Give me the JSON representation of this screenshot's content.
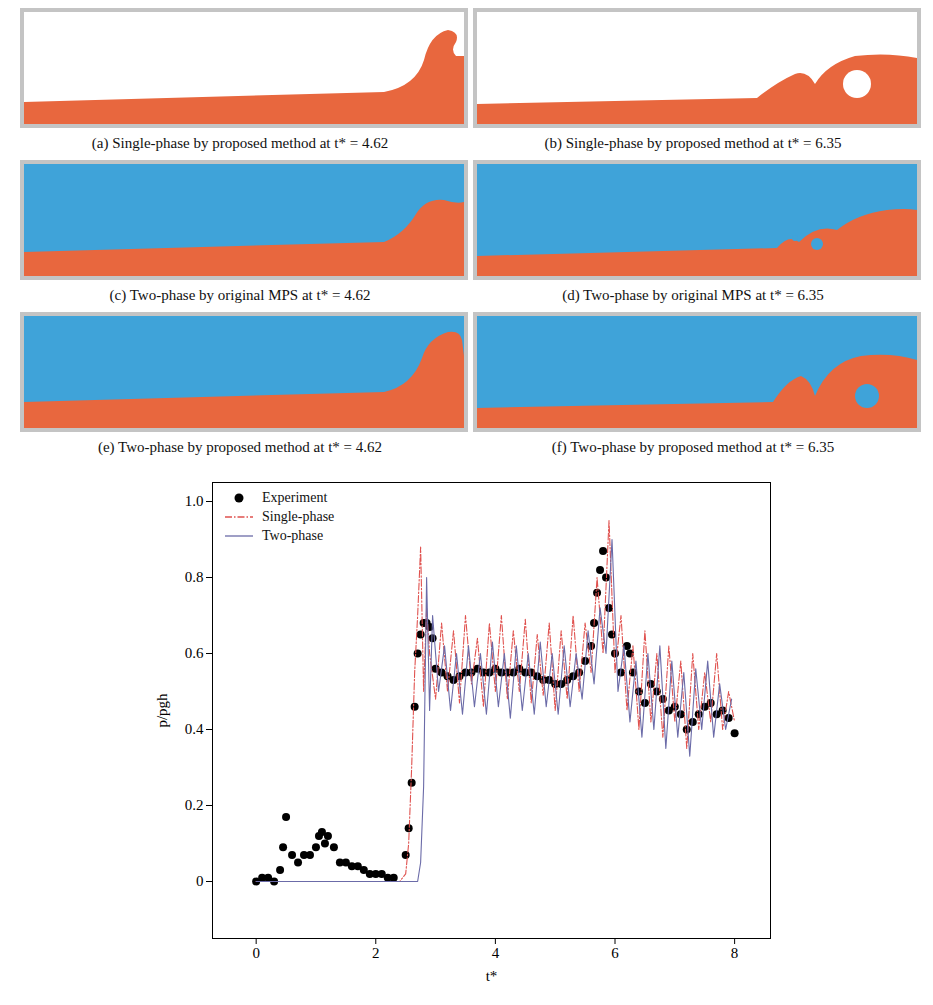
{
  "panels": [
    {
      "caption": "(a) Single-phase by proposed method at t* = 4.62"
    },
    {
      "caption": "(b) Single-phase by proposed method at t* = 6.35"
    },
    {
      "caption": "(c) Two-phase by original MPS at t* = 4.62"
    },
    {
      "caption": "(d) Two-phase by original MPS at t* = 6.35"
    },
    {
      "caption": "(e) Two-phase by proposed method at t* = 4.62"
    },
    {
      "caption": "(f) Two-phase by proposed method at t* = 6.35"
    }
  ],
  "chart_data": {
    "type": "line",
    "x_label": "t*",
    "y_label": "p/pgh",
    "xlim": [
      -0.73,
      8.6
    ],
    "ylim": [
      -0.15,
      1.05
    ],
    "xticks": [
      0,
      2,
      4,
      6,
      8
    ],
    "yticks": [
      0,
      0.2,
      0.4,
      0.6,
      0.8,
      {
        "value": 1,
        "label": "1.0"
      }
    ],
    "legend": "top-left",
    "series": [
      {
        "name": "Experiment",
        "type": "scatter",
        "marker": "circle",
        "color": "#000000",
        "x": [
          0,
          0.1,
          0.2,
          0.3,
          0.4,
          0.45,
          0.5,
          0.6,
          0.7,
          0.8,
          0.9,
          1.0,
          1.05,
          1.1,
          1.15,
          1.2,
          1.3,
          1.4,
          1.5,
          1.6,
          1.7,
          1.8,
          1.9,
          2.0,
          2.1,
          2.2,
          2.3,
          2.5,
          2.55,
          2.6,
          2.65,
          2.7,
          2.75,
          2.8,
          2.85,
          2.9,
          2.95,
          3.0,
          3.1,
          3.2,
          3.3,
          3.4,
          3.5,
          3.6,
          3.7,
          3.8,
          3.9,
          4.0,
          4.1,
          4.2,
          4.3,
          4.4,
          4.5,
          4.6,
          4.7,
          4.8,
          4.9,
          5.0,
          5.1,
          5.2,
          5.3,
          5.4,
          5.5,
          5.6,
          5.65,
          5.7,
          5.75,
          5.8,
          5.85,
          5.9,
          5.95,
          6.0,
          6.1,
          6.2,
          6.25,
          6.3,
          6.4,
          6.5,
          6.6,
          6.7,
          6.8,
          6.9,
          7.0,
          7.1,
          7.2,
          7.3,
          7.4,
          7.5,
          7.6,
          7.7,
          7.8,
          7.9,
          8.0
        ],
        "values": [
          0.0,
          0.01,
          0.01,
          0.0,
          0.03,
          0.09,
          0.17,
          0.07,
          0.05,
          0.07,
          0.07,
          0.09,
          0.12,
          0.13,
          0.1,
          0.12,
          0.09,
          0.05,
          0.05,
          0.04,
          0.04,
          0.03,
          0.02,
          0.02,
          0.02,
          0.01,
          0.01,
          0.07,
          0.14,
          0.26,
          0.46,
          0.6,
          0.65,
          0.68,
          0.68,
          0.67,
          0.64,
          0.56,
          0.55,
          0.54,
          0.53,
          0.54,
          0.55,
          0.55,
          0.56,
          0.55,
          0.55,
          0.56,
          0.55,
          0.55,
          0.55,
          0.56,
          0.55,
          0.55,
          0.54,
          0.53,
          0.53,
          0.52,
          0.52,
          0.53,
          0.54,
          0.55,
          0.58,
          0.62,
          0.68,
          0.76,
          0.82,
          0.87,
          0.8,
          0.72,
          0.65,
          0.6,
          0.55,
          0.62,
          0.6,
          0.55,
          0.5,
          0.47,
          0.52,
          0.5,
          0.48,
          0.45,
          0.46,
          0.44,
          0.4,
          0.42,
          0.44,
          0.46,
          0.47,
          0.44,
          0.45,
          0.43,
          0.39
        ]
      },
      {
        "name": "Single-phase",
        "type": "line",
        "line_style": "dashdot",
        "color": "#e0524f",
        "x": [
          0,
          2.4,
          2.5,
          2.55,
          2.6,
          2.65,
          2.7,
          2.75,
          2.8,
          2.85,
          2.9,
          3.0,
          3.1,
          3.2,
          3.3,
          3.4,
          3.5,
          3.6,
          3.7,
          3.8,
          3.9,
          4.0,
          4.1,
          4.2,
          4.3,
          4.4,
          4.5,
          4.6,
          4.7,
          4.8,
          4.9,
          5.0,
          5.1,
          5.2,
          5.3,
          5.4,
          5.5,
          5.6,
          5.7,
          5.8,
          5.9,
          6.0,
          6.1,
          6.2,
          6.3,
          6.4,
          6.5,
          6.6,
          6.7,
          6.8,
          6.9,
          7.0,
          7.1,
          7.2,
          7.3,
          7.4,
          7.5,
          7.6,
          7.7,
          7.8,
          7.9,
          8.0
        ],
        "values": [
          0,
          0,
          0.02,
          0.1,
          0.3,
          0.55,
          0.7,
          0.88,
          0.5,
          0.72,
          0.6,
          0.48,
          0.68,
          0.5,
          0.66,
          0.47,
          0.7,
          0.52,
          0.64,
          0.46,
          0.68,
          0.5,
          0.7,
          0.48,
          0.66,
          0.5,
          0.69,
          0.47,
          0.65,
          0.49,
          0.68,
          0.45,
          0.66,
          0.48,
          0.7,
          0.5,
          0.68,
          0.55,
          0.8,
          0.6,
          0.95,
          0.55,
          0.7,
          0.45,
          0.62,
          0.4,
          0.66,
          0.42,
          0.6,
          0.38,
          0.62,
          0.42,
          0.58,
          0.35,
          0.6,
          0.4,
          0.55,
          0.42,
          0.6,
          0.4,
          0.5,
          0.42
        ]
      },
      {
        "name": "Two-phase",
        "type": "line",
        "line_style": "solid",
        "color": "#6b6ba8",
        "x": [
          0,
          2.7,
          2.75,
          2.8,
          2.85,
          2.9,
          2.95,
          3.05,
          3.15,
          3.25,
          3.35,
          3.45,
          3.55,
          3.65,
          3.75,
          3.85,
          3.95,
          4.05,
          4.15,
          4.25,
          4.35,
          4.45,
          4.55,
          4.65,
          4.75,
          4.85,
          4.95,
          5.05,
          5.15,
          5.25,
          5.35,
          5.45,
          5.55,
          5.65,
          5.75,
          5.85,
          5.95,
          6.05,
          6.15,
          6.25,
          6.35,
          6.45,
          6.55,
          6.65,
          6.75,
          6.85,
          6.95,
          7.05,
          7.15,
          7.25,
          7.35,
          7.45,
          7.55,
          7.65,
          7.75,
          7.85,
          7.95
        ],
        "values": [
          0,
          0,
          0.05,
          0.25,
          0.8,
          0.45,
          0.7,
          0.5,
          0.62,
          0.45,
          0.6,
          0.44,
          0.62,
          0.46,
          0.6,
          0.44,
          0.63,
          0.46,
          0.6,
          0.43,
          0.62,
          0.45,
          0.6,
          0.44,
          0.63,
          0.46,
          0.6,
          0.44,
          0.62,
          0.46,
          0.6,
          0.48,
          0.66,
          0.52,
          0.72,
          0.6,
          0.9,
          0.5,
          0.62,
          0.42,
          0.58,
          0.38,
          0.6,
          0.4,
          0.62,
          0.35,
          0.58,
          0.38,
          0.55,
          0.33,
          0.56,
          0.4,
          0.58,
          0.38,
          0.52,
          0.4,
          0.48
        ]
      }
    ]
  }
}
